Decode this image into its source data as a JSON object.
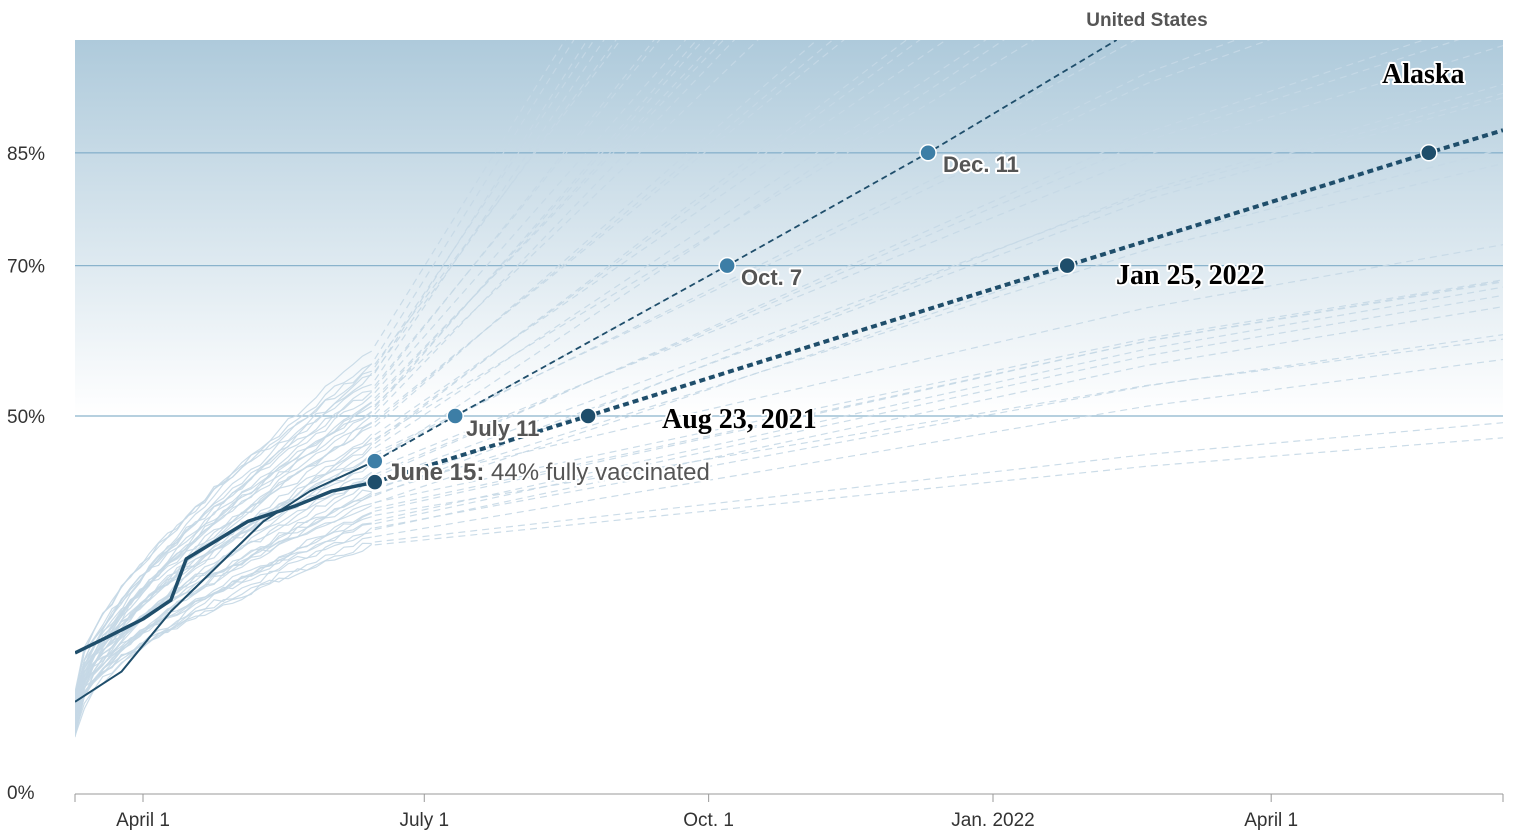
{
  "chart_data": {
    "type": "line",
    "title": "",
    "xlabel": "",
    "ylabel": "",
    "x_axis": {
      "type": "date",
      "range": [
        "2021-03-10",
        "2022-06-15"
      ],
      "ticks": [
        {
          "date": "2021-04-01",
          "label": "April 1"
        },
        {
          "date": "2021-07-01",
          "label": "July 1"
        },
        {
          "date": "2021-10-01",
          "label": "Oct. 1"
        },
        {
          "date": "2022-01-01",
          "label": "Jan. 2022"
        },
        {
          "date": "2022-04-01",
          "label": "April 1"
        }
      ]
    },
    "y_axis": {
      "range": [
        0,
        100
      ],
      "ticks": [
        {
          "value": 0,
          "label": "0%"
        },
        {
          "value": 50,
          "label": "50%"
        },
        {
          "value": 70,
          "label": "70%"
        },
        {
          "value": 85,
          "label": "85%"
        }
      ],
      "reference_lines": [
        50,
        70,
        85
      ]
    },
    "grid": false,
    "series": [
      {
        "name": "United States",
        "color": "#1f4e6b",
        "highlight_color": "#3d7ea6",
        "observed": [
          {
            "x": "2021-03-10",
            "y": 12
          },
          {
            "x": "2021-03-25",
            "y": 16
          },
          {
            "x": "2021-04-10",
            "y": 24
          },
          {
            "x": "2021-04-25",
            "y": 30
          },
          {
            "x": "2021-05-10",
            "y": 36
          },
          {
            "x": "2021-05-25",
            "y": 40
          },
          {
            "x": "2021-06-15",
            "y": 44
          }
        ],
        "projection": [
          {
            "x": "2021-06-15",
            "y": 44
          },
          {
            "x": "2021-07-11",
            "y": 50
          },
          {
            "x": "2021-10-07",
            "y": 70
          },
          {
            "x": "2021-12-11",
            "y": 85
          },
          {
            "x": "2022-02-10",
            "y": 100
          }
        ],
        "milestones": [
          {
            "x": "2021-06-15",
            "y": 44
          },
          {
            "x": "2021-07-11",
            "y": 50,
            "label": "July 11"
          },
          {
            "x": "2021-10-07",
            "y": 70,
            "label": "Oct. 7"
          },
          {
            "x": "2021-12-11",
            "y": 85,
            "label": "Dec. 11"
          }
        ]
      },
      {
        "name": "Alaska",
        "color": "#1f4e6b",
        "observed": [
          {
            "x": "2021-03-10",
            "y": 18.5
          },
          {
            "x": "2021-03-20",
            "y": 20.5
          },
          {
            "x": "2021-04-01",
            "y": 23
          },
          {
            "x": "2021-04-10",
            "y": 25.5
          },
          {
            "x": "2021-04-15",
            "y": 31
          },
          {
            "x": "2021-04-25",
            "y": 33.5
          },
          {
            "x": "2021-05-05",
            "y": 36
          },
          {
            "x": "2021-05-20",
            "y": 38
          },
          {
            "x": "2021-06-01",
            "y": 40
          },
          {
            "x": "2021-06-15",
            "y": 41.2
          }
        ],
        "projection": [
          {
            "x": "2021-06-15",
            "y": 41.2
          },
          {
            "x": "2021-08-23",
            "y": 50
          },
          {
            "x": "2022-01-25",
            "y": 70
          },
          {
            "x": "2022-05-22",
            "y": 85
          },
          {
            "x": "2022-06-15",
            "y": 88
          }
        ],
        "milestones": [
          {
            "x": "2021-06-15",
            "y": 41.2
          },
          {
            "x": "2021-08-23",
            "y": 50,
            "label": "Aug 23, 2021"
          },
          {
            "x": "2022-01-25",
            "y": 70,
            "label": "Jan 25, 2022"
          },
          {
            "x": "2022-05-22",
            "y": 85
          }
        ]
      }
    ],
    "background_series_note": "other states shown as faint light-blue lines",
    "annotations": {
      "current": {
        "label_bold": "June 15:",
        "label_rest": " 44% fully vaccinated"
      },
      "alaska_label": "Alaska",
      "us_label": "United States"
    },
    "colors": {
      "band_top": "#aecadb",
      "band_bottom": "#ffffff",
      "reference_line": "#8ab3cc",
      "faint_lines": "#c5d8e6"
    }
  }
}
